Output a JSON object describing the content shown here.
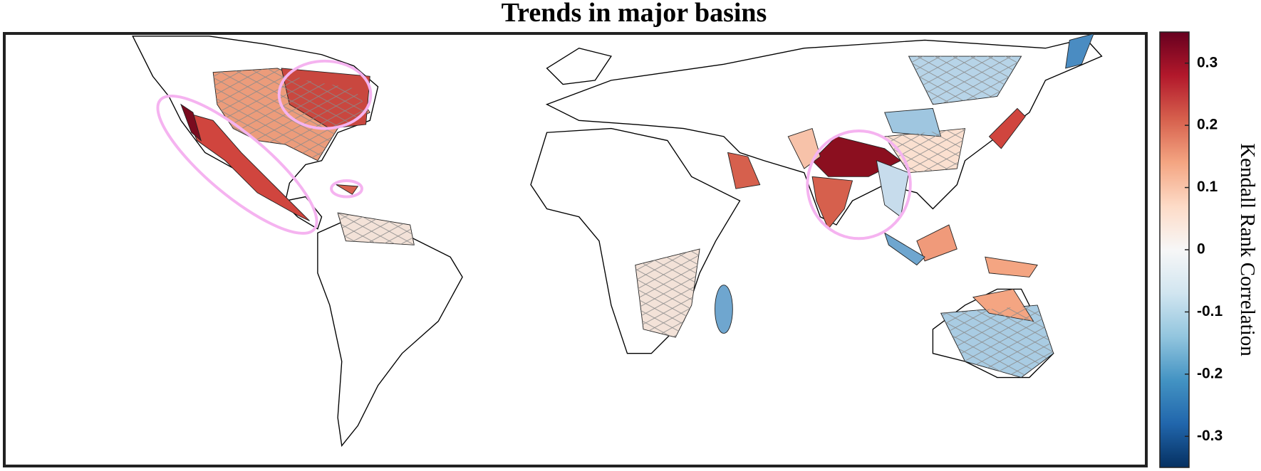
{
  "chart_data": {
    "type": "choropleth",
    "title": "Trends in major basins",
    "colorbar_label": "Kendall Rank Correlation",
    "clim": [
      -0.35,
      0.35
    ],
    "cticks": [
      -0.3,
      -0.2,
      -0.1,
      0,
      0.1,
      0.2,
      0.3
    ],
    "colormap": [
      "#053061",
      "#2166ac",
      "#4393c3",
      "#92c5de",
      "#d1e5f0",
      "#f7f7f7",
      "#fddbc7",
      "#f4a582",
      "#d6604d",
      "#b2182b",
      "#67001f"
    ]
  }
}
